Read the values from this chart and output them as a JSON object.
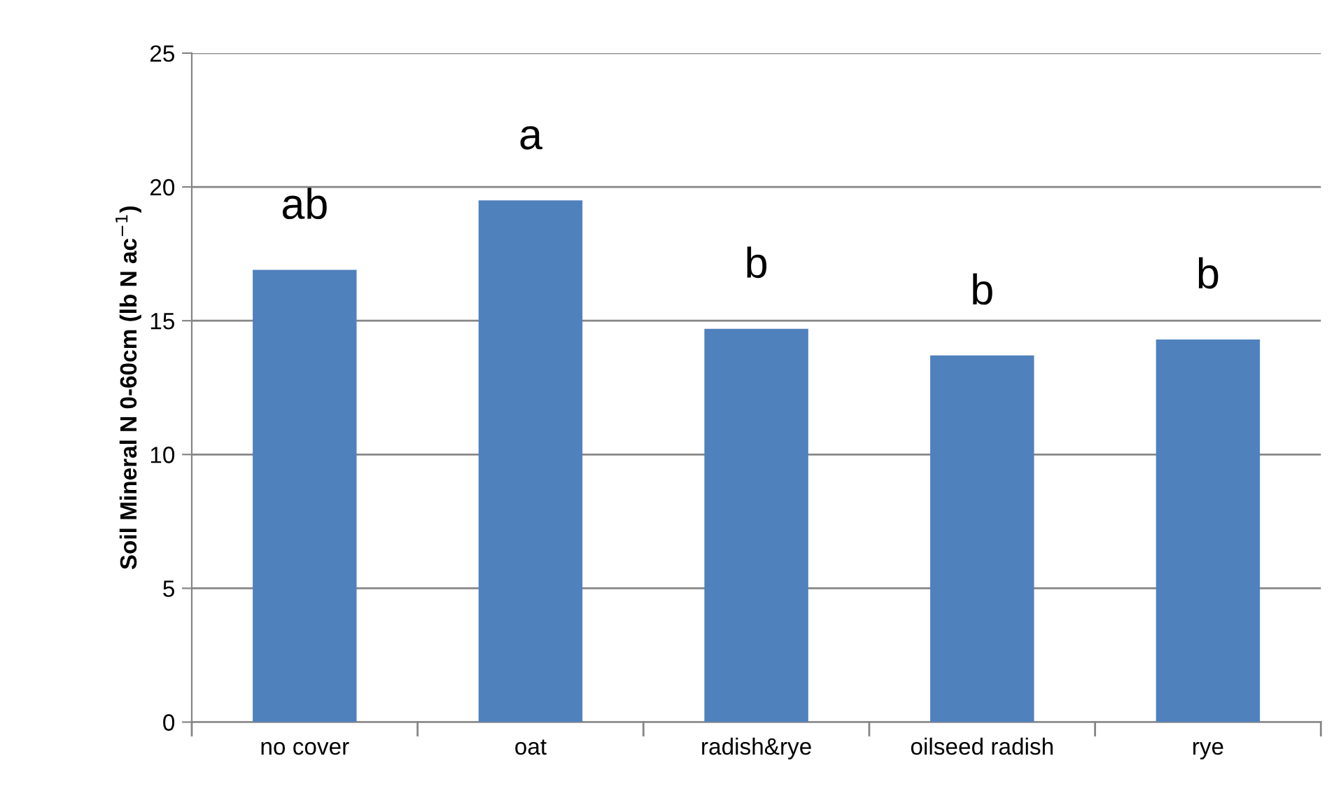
{
  "chart_data": {
    "type": "bar",
    "ylabel": "Soil Mineral N 0-60cm (lb N ac$^{−1}$)",
    "categories": [
      "no cover",
      "oat",
      "radish&rye",
      "oilseed radish",
      "rye"
    ],
    "values": [
      16.9,
      19.5,
      14.7,
      13.7,
      14.3
    ],
    "color": "#4f81bd",
    "ylim": [
      0,
      25
    ],
    "yticks": [
      0,
      5,
      10,
      15,
      20,
      25
    ],
    "grid": "y",
    "annotations": [
      "ab",
      "a",
      "b",
      "b",
      "b"
    ]
  }
}
